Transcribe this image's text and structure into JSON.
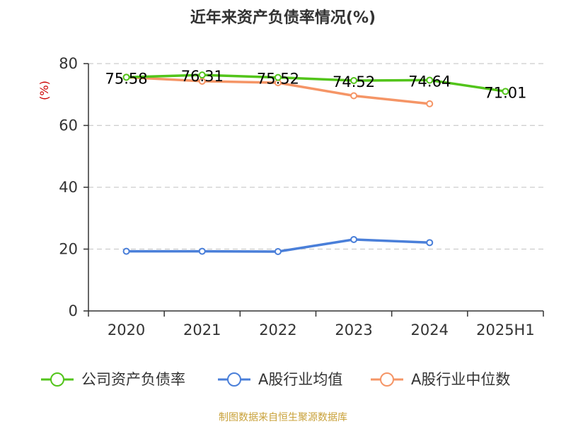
{
  "chart_data": {
    "type": "line",
    "title": "近年来资产负债率情况(%)",
    "ylabel": "(%)",
    "ylim": [
      0,
      80
    ],
    "yticks": [
      "0",
      "20",
      "40",
      "60",
      "80"
    ],
    "categories": [
      "2020",
      "2021",
      "2022",
      "2023",
      "2024",
      "2025H1"
    ],
    "grid": true,
    "legend_position": "bottom",
    "series": [
      {
        "name": "公司资产负债率",
        "color": "#52c41a",
        "values": [
          75.58,
          76.31,
          75.52,
          74.52,
          74.64,
          71.01
        ],
        "labels": [
          "75.58",
          "76.31",
          "75.52",
          "74.52",
          "74.64",
          "71.01"
        ]
      },
      {
        "name": "A股行业均值",
        "color": "#4a7fd9",
        "values": [
          19.3,
          19.3,
          19.2,
          23.1,
          22.1,
          null
        ]
      },
      {
        "name": "A股行业中位数",
        "color": "#f59566",
        "values": [
          75.6,
          74.3,
          73.8,
          69.6,
          67.0,
          null
        ]
      }
    ]
  },
  "source": "制图数据来自恒生聚源数据库",
  "colors": {
    "axis": "#333333",
    "grid": "#cccccc",
    "unit": "#cc0000",
    "source": "#c8a13a"
  }
}
